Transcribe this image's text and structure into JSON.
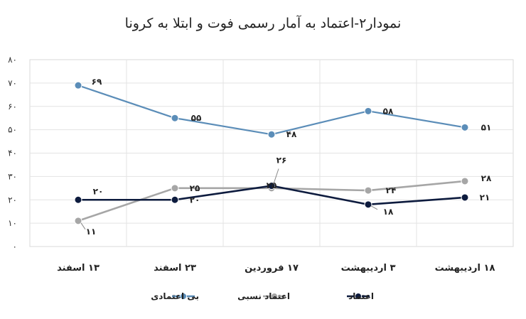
{
  "chart_data": {
    "type": "line",
    "title": "نمودار۲-اعتماد به آمار رسمی فوت و ابتلا به کرونا",
    "xlabel": "",
    "ylabel": "",
    "ylim": [
      0,
      80
    ],
    "y_ticks": [
      "۰",
      "۱۰",
      "۲۰",
      "۳۰",
      "۴۰",
      "۵۰",
      "۶۰",
      "۷۰",
      "۸۰"
    ],
    "categories": [
      "۱۳ اسفند",
      "۲۳ اسفند",
      "۱۷ فروردین",
      "۳ اردیبهشت",
      "۱۸ اردیبهشت"
    ],
    "grid": true,
    "legend_position": "bottom",
    "series": [
      {
        "name": "بی اعتمادی",
        "color": "#5b8db8",
        "values": [
          69,
          55,
          48,
          58,
          51
        ],
        "labels": [
          "۶۹",
          "۵۵",
          "۴۸",
          "۵۸",
          "۵۱"
        ]
      },
      {
        "name": "اعتماد نسبی",
        "color": "#a6a6a6",
        "values": [
          11,
          25,
          25,
          24,
          28
        ],
        "labels": [
          "۱۱",
          "۲۵",
          "۲۵",
          "۲۴",
          "۲۸"
        ]
      },
      {
        "name": "اعتماد",
        "color": "#0d1b3e",
        "values": [
          20,
          20,
          26,
          18,
          21
        ],
        "labels": [
          "۲۰",
          "۲۰",
          "۲۶",
          "۱۸",
          "۲۱"
        ]
      }
    ]
  }
}
